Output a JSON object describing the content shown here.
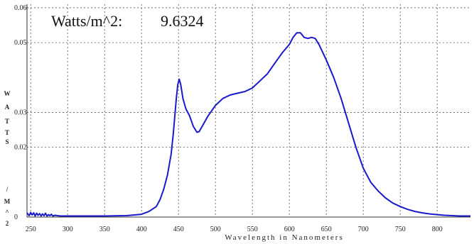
{
  "readout": {
    "label": "Watts/m^2:",
    "value": "9.6324"
  },
  "chart_data": {
    "type": "line",
    "xlabel": "Wavelength in Nanometers",
    "ylabel": "WATTS/M^2",
    "ylabel_visible": [
      "W",
      "A",
      "T",
      "T",
      "S",
      "/",
      "M",
      "^",
      "2"
    ],
    "xlim": [
      245,
      845
    ],
    "ylim": [
      0,
      0.061
    ],
    "x_ticks": [
      250,
      300,
      350,
      400,
      450,
      500,
      550,
      600,
      650,
      700,
      750,
      800
    ],
    "y_ticks": [
      {
        "value": 0.0,
        "label": "0"
      },
      {
        "value": 0.02,
        "label": "0.02"
      },
      {
        "value": 0.03,
        "label": "0.03"
      },
      {
        "value": 0.05,
        "label": "0.05"
      },
      {
        "value": 0.06,
        "label": "0.06"
      }
    ],
    "grid": true,
    "series": [
      {
        "color": "#1a1acc",
        "x": [
          245,
          248,
          250,
          252,
          254,
          256,
          258,
          260,
          262,
          264,
          266,
          268,
          270,
          272,
          274,
          276,
          278,
          280,
          283,
          286,
          290,
          300,
          320,
          350,
          380,
          400,
          410,
          420,
          425,
          430,
          435,
          440,
          443,
          445,
          447,
          449,
          451,
          453,
          456,
          460,
          465,
          470,
          475,
          478,
          482,
          490,
          500,
          510,
          520,
          530,
          540,
          550,
          560,
          570,
          580,
          590,
          600,
          605,
          610,
          615,
          620,
          625,
          630,
          635,
          640,
          650,
          660,
          670,
          680,
          690,
          700,
          710,
          720,
          730,
          740,
          750,
          760,
          770,
          780,
          790,
          800,
          810,
          820,
          830,
          845
        ],
        "y": [
          0.0012,
          0.0004,
          0.0013,
          0.0006,
          0.0012,
          0.0003,
          0.0011,
          0.0005,
          0.001,
          0.0003,
          0.0009,
          0.0004,
          0.0011,
          0.0003,
          0.0007,
          0.0004,
          0.0008,
          0.0003,
          0.0005,
          0.0004,
          0.0003,
          0.0003,
          0.0003,
          0.0003,
          0.0004,
          0.0008,
          0.0016,
          0.003,
          0.005,
          0.008,
          0.012,
          0.018,
          0.024,
          0.029,
          0.034,
          0.038,
          0.0395,
          0.038,
          0.034,
          0.031,
          0.029,
          0.026,
          0.0243,
          0.0245,
          0.026,
          0.029,
          0.032,
          0.034,
          0.035,
          0.0355,
          0.036,
          0.037,
          0.039,
          0.041,
          0.044,
          0.047,
          0.0495,
          0.0515,
          0.0528,
          0.0528,
          0.0515,
          0.0512,
          0.0515,
          0.0512,
          0.0495,
          0.045,
          0.04,
          0.034,
          0.027,
          0.02,
          0.014,
          0.01,
          0.0075,
          0.0055,
          0.004,
          0.003,
          0.0022,
          0.0016,
          0.0012,
          0.0009,
          0.0007,
          0.0005,
          0.0004,
          0.0003,
          0.0003
        ]
      }
    ]
  }
}
